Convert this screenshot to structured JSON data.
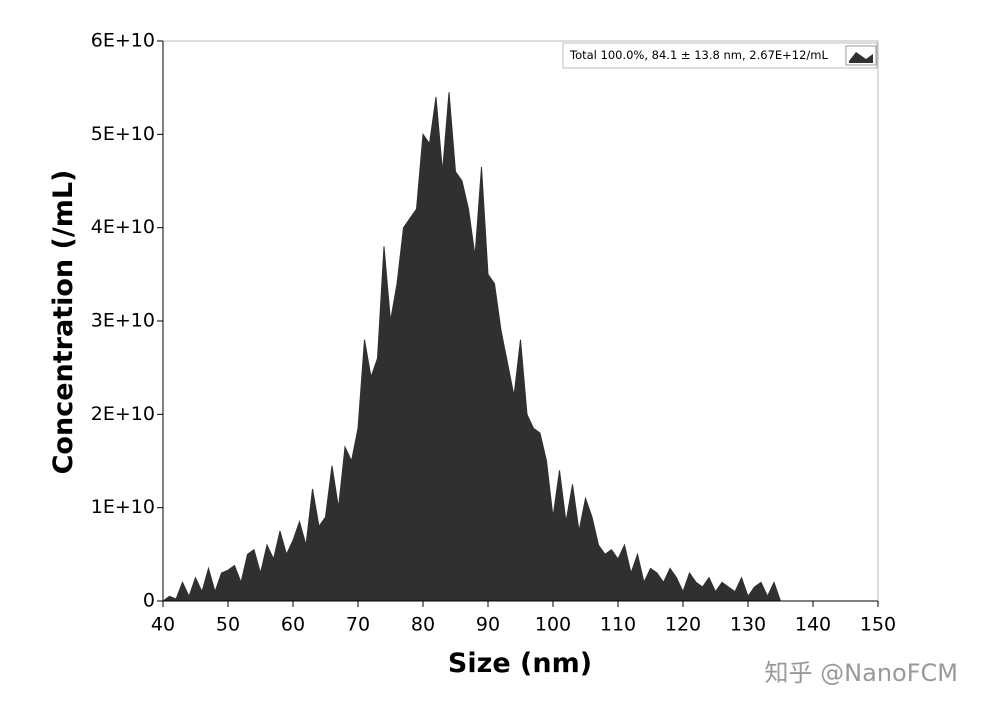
{
  "chart_data": {
    "type": "area",
    "xlabel": "Size (nm)",
    "ylabel": "Concentration (/mL)",
    "watermark": "知乎 @NanoFCM",
    "legend": "upper right",
    "xlim": [
      40,
      150
    ],
    "ylim": [
      0,
      60000000000.0
    ],
    "xticks": [
      40,
      50,
      60,
      70,
      80,
      90,
      100,
      110,
      120,
      130,
      140,
      150
    ],
    "yticks": [
      0,
      {
        "value": 10000000000.0,
        "label": "1E+10"
      },
      {
        "value": 20000000000.0,
        "label": "2E+10"
      },
      {
        "value": 30000000000.0,
        "label": "3E+10"
      },
      {
        "value": 40000000000.0,
        "label": "4E+10"
      },
      {
        "value": 50000000000.0,
        "label": "5E+10"
      },
      {
        "value": 60000000000.0,
        "label": "6E+10"
      }
    ],
    "x": [
      40,
      41,
      42,
      43,
      44,
      45,
      46,
      47,
      48,
      49,
      50,
      51,
      52,
      53,
      54,
      55,
      56,
      57,
      58,
      59,
      60,
      61,
      62,
      63,
      64,
      65,
      66,
      67,
      68,
      69,
      70,
      71,
      72,
      73,
      74,
      75,
      76,
      77,
      78,
      79,
      80,
      81,
      82,
      83,
      84,
      85,
      86,
      87,
      88,
      89,
      90,
      91,
      92,
      93,
      94,
      95,
      96,
      97,
      98,
      99,
      100,
      101,
      102,
      103,
      104,
      105,
      106,
      107,
      108,
      109,
      110,
      111,
      112,
      113,
      114,
      115,
      116,
      117,
      118,
      119,
      120,
      121,
      122,
      123,
      124,
      125,
      126,
      127,
      128,
      129,
      130,
      131,
      132,
      133,
      134,
      135,
      150
    ],
    "series": [
      {
        "name": "Total  100.0%,  84.1 ± 13.8 nm,  2.67E+12/mL",
        "color": "#303030",
        "values": [
          0,
          500000000.0,
          200000000.0,
          2000000000.0,
          500000000.0,
          2500000000.0,
          1000000000.0,
          3500000000.0,
          1000000000.0,
          3000000000.0,
          3300000000.0,
          3800000000.0,
          2000000000.0,
          5000000000.0,
          5500000000.0,
          3000000000.0,
          6000000000.0,
          4500000000.0,
          7500000000.0,
          5000000000.0,
          6500000000.0,
          8500000000.0,
          6000000000.0,
          12000000000.0,
          8000000000.0,
          9000000000.0,
          14500000000.0,
          10000000000.0,
          16500000000.0,
          15000000000.0,
          18500000000.0,
          28000000000.0,
          24000000000.0,
          26000000000.0,
          38000000000.0,
          30000000000.0,
          34000000000.0,
          40000000000.0,
          41000000000.0,
          42000000000.0,
          50000000000.0,
          49000000000.0,
          54000000000.0,
          46000000000.0,
          54500000000.0,
          46000000000.0,
          45000000000.0,
          42000000000.0,
          37000000000.0,
          46500000000.0,
          35000000000.0,
          34000000000.0,
          29000000000.0,
          25500000000.0,
          22000000000.0,
          28000000000.0,
          20000000000.0,
          18500000000.0,
          18000000000.0,
          15000000000.0,
          9000000000.0,
          14000000000.0,
          8500000000.0,
          12500000000.0,
          7500000000.0,
          11000000000.0,
          9000000000.0,
          6000000000.0,
          5000000000.0,
          5500000000.0,
          4500000000.0,
          6000000000.0,
          3000000000.0,
          5000000000.0,
          2000000000.0,
          3500000000.0,
          3000000000.0,
          2000000000.0,
          3500000000.0,
          2500000000.0,
          1000000000.0,
          3000000000.0,
          2000000000.0,
          1500000000.0,
          2500000000.0,
          1000000000.0,
          2000000000.0,
          1500000000.0,
          1000000000.0,
          2500000000.0,
          500000000.0,
          1500000000.0,
          2000000000.0,
          500000000.0,
          2000000000.0,
          0,
          0
        ]
      }
    ]
  }
}
